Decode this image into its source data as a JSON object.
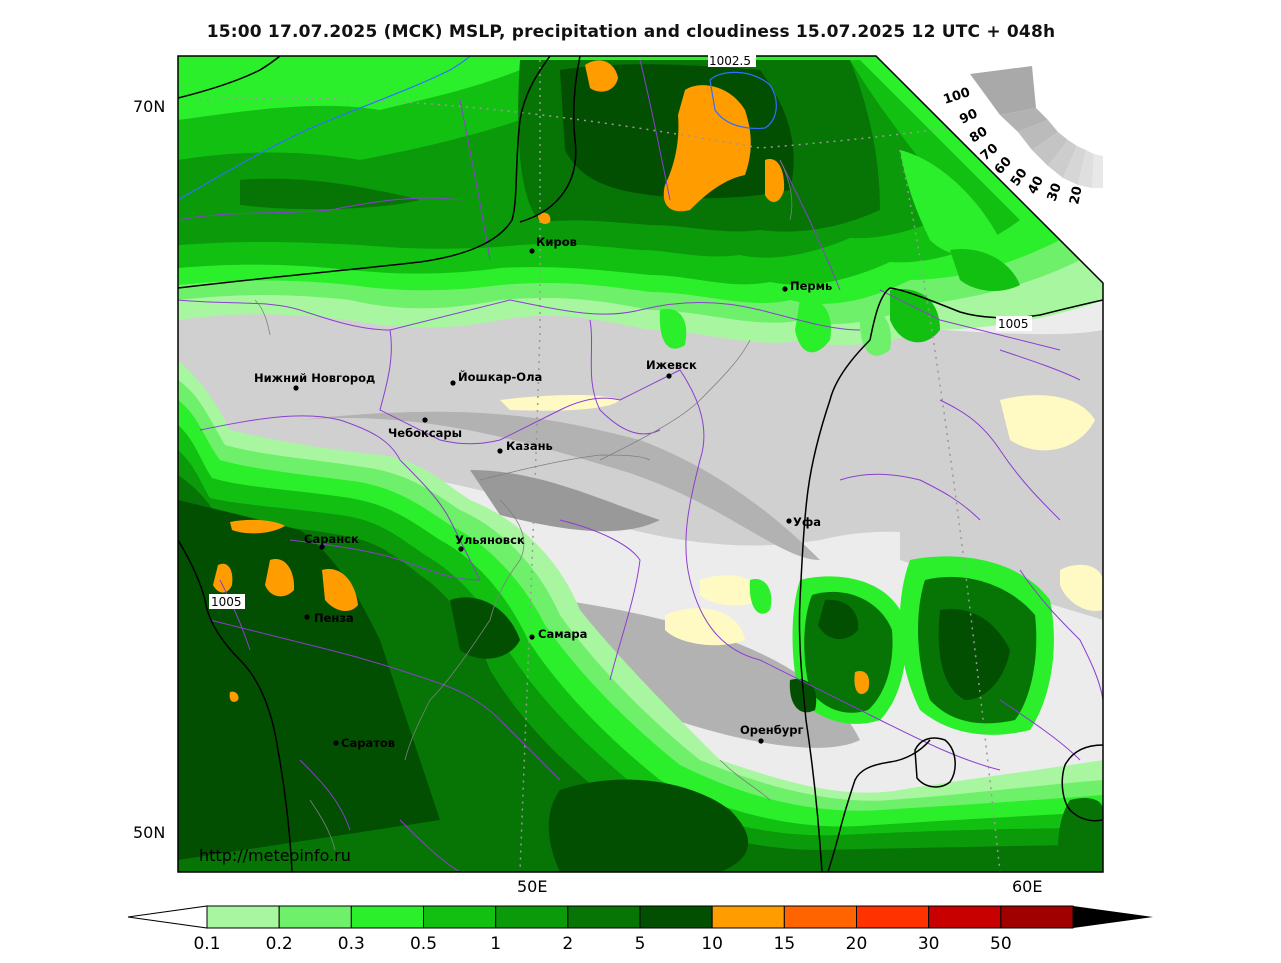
{
  "title": "15:00 17.07.2025 (MCK) MSLP, precipitation and cloudiness 15.07.2025 12 UTC + 048h",
  "watermark": "http://meteoinfo.ru",
  "axes": {
    "lat_labels": [
      "70N",
      "50N"
    ],
    "lon_labels": [
      "50E",
      "60E"
    ]
  },
  "cities": [
    {
      "name": "Киров"
    },
    {
      "name": "Пермь"
    },
    {
      "name": "Нижний Новгород"
    },
    {
      "name": "Йошкар-Ола"
    },
    {
      "name": "Ижевск"
    },
    {
      "name": "Чебоксары"
    },
    {
      "name": "Казань"
    },
    {
      "name": "Уфа"
    },
    {
      "name": "Саранск"
    },
    {
      "name": "Ульяновск"
    },
    {
      "name": "Пенза"
    },
    {
      "name": "Самара"
    },
    {
      "name": "Оренбург"
    },
    {
      "name": "Саратов"
    }
  ],
  "isobar_labels": [
    "1002.5",
    "1005",
    "1005"
  ],
  "cloud_scale": [
    "100",
    "90",
    "80",
    "70",
    "60",
    "50",
    "40",
    "30",
    "20"
  ],
  "colorbar": {
    "labels": [
      "0.1",
      "0.2",
      "0.3",
      "0.5",
      "1",
      "2",
      "5",
      "10",
      "15",
      "20",
      "30",
      "50"
    ],
    "colors": [
      "#a8f7a0",
      "#6ef06a",
      "#2bef2b",
      "#12c012",
      "#0a9a0a",
      "#067506",
      "#024f02",
      "#ff9c00",
      "#ff6400",
      "#ff3200",
      "#c80000",
      "#a00000"
    ]
  },
  "colors": {
    "cloud_light": "#ececec",
    "cloud_mid": "#d0d0d0",
    "cloud_dark": "#b2b2b2",
    "cloud_darker": "#999999",
    "sun_yellow": "#fff9c4",
    "border_purple": "#8a3fd0",
    "coast_blue": "#3070ff",
    "river_gray": "#7f7f7f",
    "isobar": "#000000"
  }
}
